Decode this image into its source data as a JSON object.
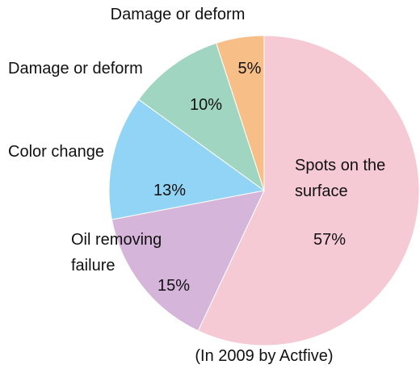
{
  "chart_data": {
    "type": "pie",
    "categories": [
      "Spots on the surface",
      "Oil removing failure",
      "Color change",
      "Damage or deform",
      "Damage or deform"
    ],
    "values": [
      57,
      15,
      13,
      10,
      5
    ],
    "value_labels": [
      "57%",
      "15%",
      "13%",
      "10%",
      "5%"
    ],
    "colors": [
      "#f6cad4",
      "#d5b5d9",
      "#92d4f5",
      "#a0d6c1",
      "#f7bf87"
    ],
    "caption": "(In 2009 by Actfive)"
  }
}
